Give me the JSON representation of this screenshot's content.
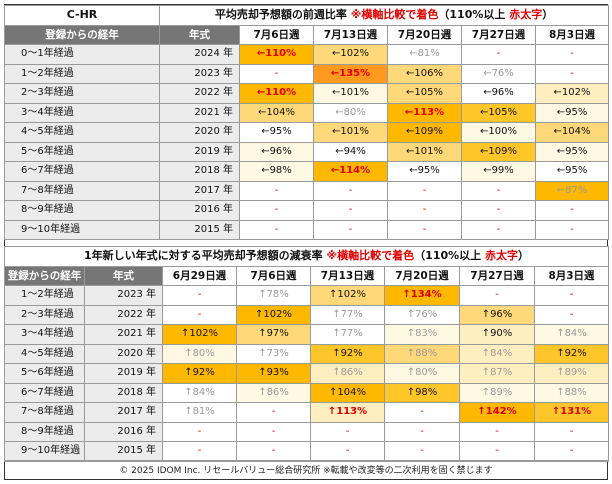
{
  "table1": {
    "corner_title": "C-HR",
    "title_main": "平均売却予想額の前週比率 ",
    "title_note": "※横軸比較で着色",
    "title_paren_a": "（110%以上 ",
    "title_paren_red": "赤太字",
    "title_paren_b": "）",
    "header_label": "登録からの経年",
    "header_year": "年式",
    "weeks": [
      "7月6日週",
      "7月13日週",
      "7月20日週",
      "7月27日週",
      "8月3日週"
    ],
    "rows": [
      {
        "label": "0～1年経過",
        "year": "2024 年",
        "cells": [
          {
            "text": "←110%",
            "shade": "c5",
            "red": true
          },
          {
            "text": "←102%",
            "shade": "c3"
          },
          {
            "text": "←81%",
            "shade": "c0",
            "muted": true
          },
          {
            "text": "-",
            "shade": "c0",
            "dash": true
          },
          {
            "text": "-",
            "shade": "c0",
            "dash": true
          }
        ]
      },
      {
        "label": "1～2年経過",
        "year": "2023 年",
        "cells": [
          {
            "text": "-",
            "shade": "c0",
            "dash": true
          },
          {
            "text": "←135%",
            "shade": "c6",
            "red": true
          },
          {
            "text": "←106%",
            "shade": "c3"
          },
          {
            "text": "←76%",
            "shade": "c0",
            "muted": true
          },
          {
            "text": "-",
            "shade": "c0",
            "dash": true
          }
        ]
      },
      {
        "label": "2～3年経過",
        "year": "2022 年",
        "cells": [
          {
            "text": "←110%",
            "shade": "c5",
            "red": true
          },
          {
            "text": "←101%",
            "shade": "c1"
          },
          {
            "text": "←105%",
            "shade": "c3"
          },
          {
            "text": "←96%",
            "shade": "c0"
          },
          {
            "text": "←102%",
            "shade": "c2"
          }
        ]
      },
      {
        "label": "3～4年経過",
        "year": "2021 年",
        "cells": [
          {
            "text": "←104%",
            "shade": "c3"
          },
          {
            "text": "←80%",
            "shade": "c0",
            "muted": true
          },
          {
            "text": "←113%",
            "shade": "c5",
            "red": true
          },
          {
            "text": "←105%",
            "shade": "c4"
          },
          {
            "text": "←95%",
            "shade": "c1"
          }
        ]
      },
      {
        "label": "4～5年経過",
        "year": "2020 年",
        "cells": [
          {
            "text": "←95%",
            "shade": "c0"
          },
          {
            "text": "←101%",
            "shade": "c3"
          },
          {
            "text": "←109%",
            "shade": "c5"
          },
          {
            "text": "←100%",
            "shade": "c1"
          },
          {
            "text": "←104%",
            "shade": "c3"
          }
        ]
      },
      {
        "label": "5～6年経過",
        "year": "2019 年",
        "cells": [
          {
            "text": "←96%",
            "shade": "c1"
          },
          {
            "text": "←94%",
            "shade": "c0"
          },
          {
            "text": "←101%",
            "shade": "c3"
          },
          {
            "text": "←109%",
            "shade": "c4"
          },
          {
            "text": "←95%",
            "shade": "c1"
          }
        ]
      },
      {
        "label": "6～7年経過",
        "year": "2018 年",
        "cells": [
          {
            "text": "←98%",
            "shade": "c1"
          },
          {
            "text": "←114%",
            "shade": "c5",
            "red": true
          },
          {
            "text": "←95%",
            "shade": "c0"
          },
          {
            "text": "←99%",
            "shade": "c1"
          },
          {
            "text": "←95%",
            "shade": "c0"
          }
        ]
      },
      {
        "label": "7～8年経過",
        "year": "2017 年",
        "cells": [
          {
            "text": "-",
            "shade": "c0",
            "dash": true
          },
          {
            "text": "-",
            "shade": "c0",
            "dash": true
          },
          {
            "text": "-",
            "shade": "c0",
            "dash": true
          },
          {
            "text": "-",
            "shade": "c0",
            "dash": true
          },
          {
            "text": "←87%",
            "shade": "c5",
            "muted": true
          }
        ]
      },
      {
        "label": "8～9年経過",
        "year": "2016 年",
        "cells": [
          {
            "text": "-",
            "shade": "c0",
            "dash": true
          },
          {
            "text": "-",
            "shade": "c0",
            "dash": true
          },
          {
            "text": "-",
            "shade": "c0",
            "dash": true
          },
          {
            "text": "-",
            "shade": "c0",
            "dash": true
          },
          {
            "text": "-",
            "shade": "c0",
            "dash": true
          }
        ]
      },
      {
        "label": "9～10年経過",
        "year": "2015 年",
        "cells": [
          {
            "text": "-",
            "shade": "c0",
            "dash": true
          },
          {
            "text": "-",
            "shade": "c0",
            "dash": true
          },
          {
            "text": "-",
            "shade": "c0",
            "dash": true
          },
          {
            "text": "-",
            "shade": "c0",
            "dash": true
          },
          {
            "text": "-",
            "shade": "c0",
            "dash": true
          }
        ]
      }
    ]
  },
  "table2": {
    "title_main": "1年新しい年式に対する平均売却予想額の減衰率 ",
    "title_note": "※横軸比較で着色",
    "title_paren_a": "（110%以上 ",
    "title_paren_red": "赤太字",
    "title_paren_b": "）",
    "header_label": "登録からの経年",
    "header_year": "年式",
    "weeks": [
      "6月29日週",
      "7月6日週",
      "7月13日週",
      "7月20日週",
      "7月27日週",
      "8月3日週"
    ],
    "rows": [
      {
        "label": "1～2年経過",
        "year": "2023 年",
        "cells": [
          {
            "text": "-",
            "shade": "c0",
            "dash": true
          },
          {
            "text": "↑78%",
            "shade": "c0",
            "muted": true
          },
          {
            "text": "↑102%",
            "shade": "c3"
          },
          {
            "text": "↑134%",
            "shade": "c5",
            "red": true
          },
          {
            "text": "-",
            "shade": "c0",
            "dash": true
          },
          {
            "text": "-",
            "shade": "c0",
            "dash": true
          }
        ]
      },
      {
        "label": "2～3年経過",
        "year": "2022 年",
        "cells": [
          {
            "text": "-",
            "shade": "c0",
            "dash": true
          },
          {
            "text": "↑102%",
            "shade": "c5"
          },
          {
            "text": "↑77%",
            "shade": "c0",
            "muted": true
          },
          {
            "text": "↑76%",
            "shade": "c0",
            "muted": true
          },
          {
            "text": "↑96%",
            "shade": "c3"
          },
          {
            "text": "-",
            "shade": "c0",
            "dash": true
          }
        ]
      },
      {
        "label": "3～4年経過",
        "year": "2021 年",
        "cells": [
          {
            "text": "↑102%",
            "shade": "c5"
          },
          {
            "text": "↑97%",
            "shade": "c3"
          },
          {
            "text": "↑77%",
            "shade": "c0",
            "muted": true
          },
          {
            "text": "↑83%",
            "shade": "c1",
            "muted": true
          },
          {
            "text": "↑90%",
            "shade": "c2"
          },
          {
            "text": "↑84%",
            "shade": "c1",
            "muted": true
          }
        ]
      },
      {
        "label": "4～5年経過",
        "year": "2020 年",
        "cells": [
          {
            "text": "↑80%",
            "shade": "c1",
            "muted": true
          },
          {
            "text": "↑73%",
            "shade": "c0",
            "muted": true
          },
          {
            "text": "↑92%",
            "shade": "c4"
          },
          {
            "text": "↑88%",
            "shade": "c3",
            "muted": true
          },
          {
            "text": "↑84%",
            "shade": "c2",
            "muted": true
          },
          {
            "text": "↑92%",
            "shade": "c4"
          }
        ]
      },
      {
        "label": "5～6年経過",
        "year": "2019 年",
        "cells": [
          {
            "text": "↑92%",
            "shade": "c5"
          },
          {
            "text": "↑93%",
            "shade": "c5"
          },
          {
            "text": "↑86%",
            "shade": "c2",
            "muted": true
          },
          {
            "text": "↑80%",
            "shade": "c1",
            "muted": true
          },
          {
            "text": "↑87%",
            "shade": "c2",
            "muted": true
          },
          {
            "text": "↑89%",
            "shade": "c2",
            "muted": true
          }
        ]
      },
      {
        "label": "6～7年経過",
        "year": "2018 年",
        "cells": [
          {
            "text": "↑84%",
            "shade": "c0",
            "muted": true
          },
          {
            "text": "↑86%",
            "shade": "c1",
            "muted": true
          },
          {
            "text": "↑104%",
            "shade": "c5"
          },
          {
            "text": "↑98%",
            "shade": "c4"
          },
          {
            "text": "↑89%",
            "shade": "c1",
            "muted": true
          },
          {
            "text": "↑88%",
            "shade": "c1",
            "muted": true
          }
        ]
      },
      {
        "label": "7～8年経過",
        "year": "2017 年",
        "cells": [
          {
            "text": "↑81%",
            "shade": "c0",
            "muted": true
          },
          {
            "text": "-",
            "shade": "c0",
            "dash": true
          },
          {
            "text": "↑113%",
            "shade": "c2",
            "red": true
          },
          {
            "text": "-",
            "shade": "c0",
            "dash": true
          },
          {
            "text": "↑142%",
            "shade": "c5",
            "red": true
          },
          {
            "text": "↑131%",
            "shade": "c4",
            "red": true
          }
        ]
      },
      {
        "label": "8～9年経過",
        "year": "2016 年",
        "cells": [
          {
            "text": "-",
            "shade": "c0",
            "dash": true
          },
          {
            "text": "-",
            "shade": "c0",
            "dash": true
          },
          {
            "text": "-",
            "shade": "c0",
            "dash": true
          },
          {
            "text": "-",
            "shade": "c0",
            "dash": true
          },
          {
            "text": "-",
            "shade": "c0",
            "dash": true
          },
          {
            "text": "-",
            "shade": "c0",
            "dash": true
          }
        ]
      },
      {
        "label": "9～10年経過",
        "year": "2015 年",
        "cells": [
          {
            "text": "-",
            "shade": "c0",
            "dash": true
          },
          {
            "text": "-",
            "shade": "c0",
            "dash": true
          },
          {
            "text": "-",
            "shade": "c0",
            "dash": true
          },
          {
            "text": "-",
            "shade": "c0",
            "dash": true
          },
          {
            "text": "-",
            "shade": "c0",
            "dash": true
          },
          {
            "text": "-",
            "shade": "c0",
            "dash": true
          }
        ]
      }
    ]
  },
  "footer": "© 2025 IDOM Inc. リセールバリュー総合研究所 ※転載や改変等の二次利用を固く禁じます"
}
